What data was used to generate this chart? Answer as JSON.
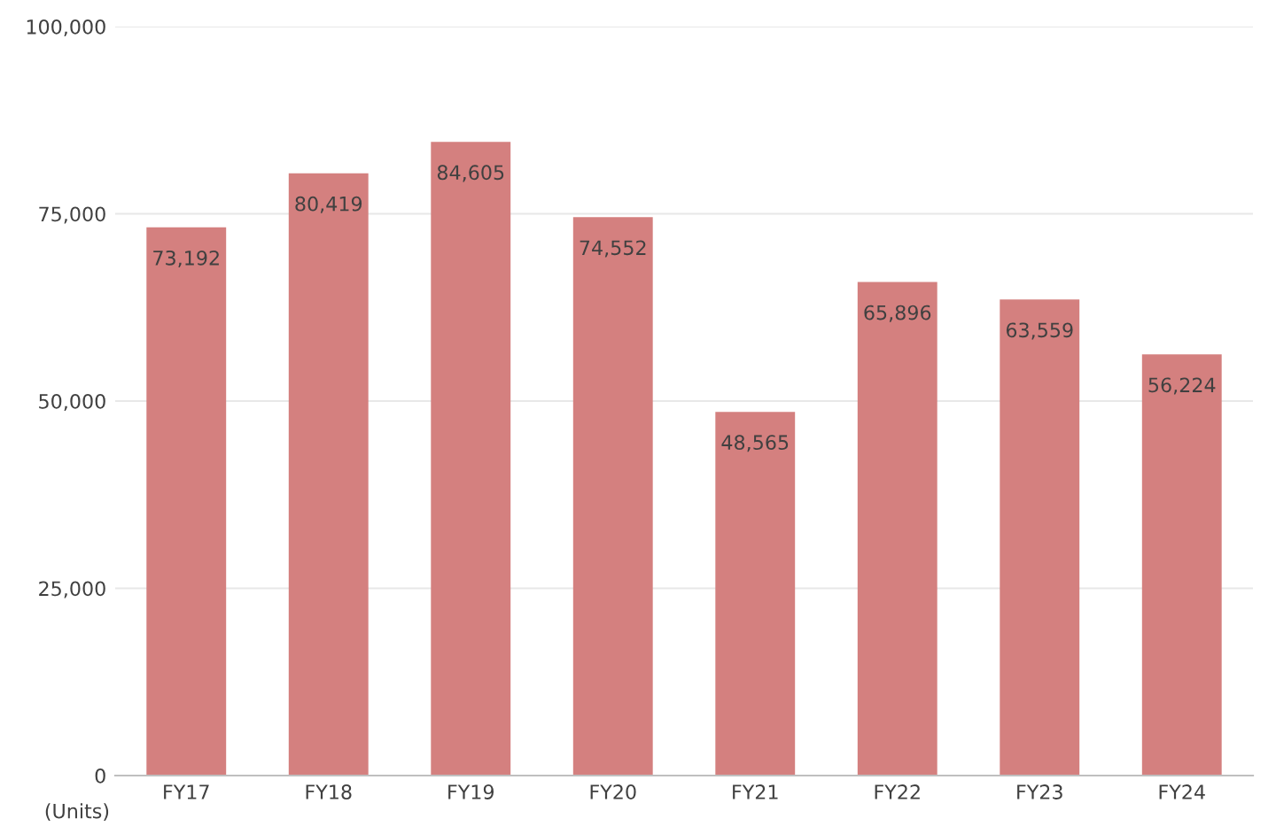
{
  "chart_data": {
    "type": "bar",
    "categories": [
      "FY17",
      "FY18",
      "FY19",
      "FY20",
      "FY21",
      "FY22",
      "FY23",
      "FY24"
    ],
    "values": [
      73192,
      80419,
      84605,
      74552,
      48565,
      65896,
      63559,
      56224
    ],
    "color": "#d4807f",
    "ylim": [
      0,
      100000
    ],
    "yticks": [
      {
        "value": 0,
        "label": "0"
      },
      {
        "value": 25000,
        "label": "25,000"
      },
      {
        "value": 50000,
        "label": "50,000"
      },
      {
        "value": 75000,
        "label": "75,000"
      },
      {
        "value": 100000,
        "label": "100,000"
      }
    ],
    "value_labels": [
      "73,192",
      "80,419",
      "84,605",
      "74,552",
      "48,565",
      "65,896",
      "63,559",
      "56,224"
    ],
    "annotations": [
      "(Units)"
    ],
    "grid": "y"
  }
}
